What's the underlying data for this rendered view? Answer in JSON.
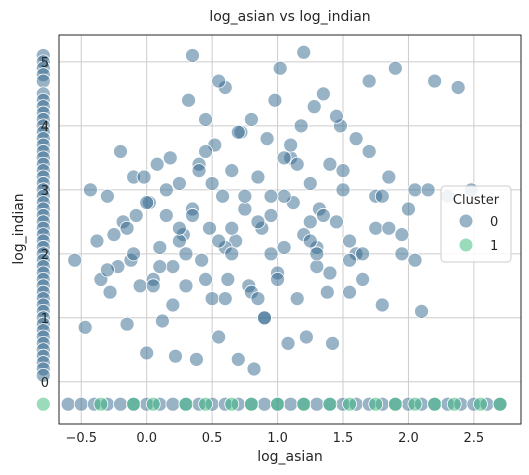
{
  "chart_data": {
    "type": "scatter",
    "title": "log_asian vs log_indian",
    "xlabel": "log_asian",
    "ylabel": "log_indian",
    "xlim": [
      -0.67,
      2.86
    ],
    "ylim": [
      -0.66,
      5.42
    ],
    "xticks": [
      -0.5,
      0.0,
      0.5,
      1.0,
      1.5,
      2.0,
      2.5
    ],
    "xtick_labels": [
      "−0.5",
      "0.0",
      "0.5",
      "1.0",
      "1.5",
      "2.0",
      "2.5"
    ],
    "yticks": [
      0,
      1,
      2,
      3,
      4,
      5
    ],
    "ytick_labels": [
      "0",
      "1",
      "2",
      "3",
      "4",
      "5"
    ],
    "grid": true,
    "legend": {
      "title": "Cluster",
      "placement": "center-right",
      "entries": [
        {
          "label": "0",
          "color": "#31688e"
        },
        {
          "label": "1",
          "color": "#35b779"
        }
      ]
    },
    "series": [
      {
        "name": "0",
        "color": "#31688e",
        "x": [
          -0.79,
          -0.79,
          -0.79,
          -0.79,
          -0.79,
          -0.79,
          -0.79,
          -0.79,
          -0.79,
          -0.79,
          -0.79,
          -0.79,
          -0.79,
          -0.79,
          -0.79,
          -0.79,
          -0.79,
          -0.79,
          -0.79,
          -0.79,
          -0.79,
          -0.79,
          -0.79,
          -0.79,
          -0.79,
          -0.79,
          -0.79,
          -0.79,
          -0.79,
          -0.79,
          -0.79,
          -0.79,
          -0.79,
          -0.79,
          -0.79,
          -0.79,
          -0.79,
          -0.79,
          -0.79,
          -0.79,
          -0.79,
          -0.79,
          -0.79,
          -0.79,
          -0.79,
          -0.79,
          -0.79,
          -0.79,
          -0.79,
          -0.79,
          -0.55,
          -0.47,
          -0.43,
          -0.38,
          -0.35,
          -0.3,
          -0.28,
          -0.25,
          -0.22,
          -0.2,
          -0.18,
          -0.15,
          -0.12,
          -0.1,
          -0.08,
          -0.05,
          -0.02,
          0.0,
          0.02,
          0.05,
          0.08,
          0.1,
          0.12,
          0.15,
          0.18,
          0.2,
          0.22,
          0.25,
          0.28,
          0.3,
          0.32,
          0.35,
          0.38,
          0.4,
          0.42,
          0.45,
          0.48,
          0.5,
          0.52,
          0.55,
          0.58,
          0.6,
          0.62,
          0.65,
          0.68,
          0.7,
          0.72,
          0.75,
          0.78,
          0.8,
          0.82,
          0.85,
          0.88,
          0.9,
          0.92,
          0.95,
          0.98,
          1.0,
          1.02,
          1.05,
          1.08,
          1.1,
          1.12,
          1.15,
          1.18,
          1.2,
          1.22,
          1.25,
          1.28,
          1.3,
          1.32,
          1.35,
          1.38,
          1.4,
          1.42,
          1.45,
          1.48,
          1.5,
          1.55,
          1.6,
          1.65,
          1.7,
          1.75,
          1.8,
          1.85,
          1.9,
          1.95,
          2.0,
          2.05,
          2.1,
          2.2,
          2.3,
          2.38,
          2.48,
          0.35,
          0.55,
          0.7,
          0.95,
          1.2,
          1.45,
          0.1,
          0.25,
          0.45,
          0.6,
          0.85,
          1.05,
          1.3,
          1.55,
          1.75,
          2.15,
          0.0,
          0.2,
          0.4,
          0.65,
          0.9,
          1.1,
          1.35,
          1.6,
          1.85,
          2.05,
          -0.15,
          0.05,
          0.3,
          0.5,
          0.75,
          1.0,
          1.25,
          1.5,
          1.7,
          1.95,
          -0.3,
          -0.1,
          0.15,
          0.35,
          0.6,
          0.8,
          1.05,
          1.3,
          1.55,
          1.8,
          0.45,
          0.65,
          0.85,
          1.15,
          1.4,
          0.25,
          0.55,
          0.95,
          1.25,
          1.65,
          -0.6,
          -0.5,
          -0.4,
          -0.3,
          -0.2,
          -0.1,
          0.0,
          0.1,
          0.2,
          0.3,
          0.4,
          0.5,
          0.6,
          0.7,
          0.8,
          0.9,
          1.0,
          1.1,
          1.2,
          1.3,
          1.4,
          1.5,
          1.6,
          1.7,
          1.8,
          1.9,
          2.0,
          2.1,
          2.2,
          2.3,
          2.4,
          2.5,
          2.6,
          2.7
        ],
        "y": [
          5.1,
          5.0,
          4.9,
          4.8,
          4.7,
          4.5,
          4.4,
          4.3,
          4.2,
          4.1,
          4.0,
          3.9,
          3.8,
          3.7,
          3.6,
          3.5,
          3.4,
          3.3,
          3.2,
          3.1,
          3.0,
          2.9,
          2.8,
          2.7,
          2.6,
          2.5,
          2.4,
          2.3,
          2.2,
          2.1,
          2.0,
          1.9,
          1.8,
          1.7,
          1.6,
          1.5,
          1.4,
          1.3,
          1.2,
          1.1,
          1.0,
          0.9,
          0.8,
          0.7,
          0.6,
          0.5,
          0.4,
          0.3,
          0.2,
          0.1,
          1.9,
          0.85,
          3.0,
          2.2,
          1.6,
          2.9,
          1.4,
          2.3,
          1.8,
          3.6,
          2.5,
          0.9,
          1.9,
          3.2,
          2.6,
          1.5,
          3.2,
          0.45,
          2.8,
          1.6,
          3.4,
          2.1,
          0.95,
          2.6,
          3.5,
          1.8,
          0.4,
          3.1,
          2.3,
          1.5,
          4.4,
          2.7,
          0.35,
          3.4,
          1.9,
          4.1,
          2.4,
          1.3,
          3.7,
          0.7,
          2.9,
          4.6,
          1.6,
          3.3,
          2.2,
          0.35,
          3.9,
          2.7,
          1.5,
          4.1,
          0.2,
          3.2,
          2.4,
          1.0,
          3.8,
          2.6,
          4.4,
          1.7,
          4.9,
          2.1,
          0.6,
          3.5,
          2.8,
          1.3,
          4.0,
          2.3,
          0.7,
          3.1,
          4.3,
          1.8,
          2.7,
          4.5,
          1.4,
          3.4,
          0.6,
          2.5,
          4.0,
          3.0,
          2.2,
          3.8,
          1.6,
          4.7,
          2.4,
          1.2,
          3.2,
          4.9,
          2.0,
          2.7,
          3.0,
          1.1,
          4.7,
          2.9,
          4.6,
          3.0,
          5.1,
          4.7,
          3.9,
          2.0,
          5.15,
          4.15,
          1.8,
          2.2,
          3.6,
          1.3,
          2.5,
          3.5,
          2.1,
          1.4,
          2.9,
          3.0,
          2.8,
          1.2,
          3.3,
          2.4,
          1.0,
          3.7,
          2.6,
          2.0,
          2.4,
          1.9,
          2.4,
          1.5,
          2.0,
          3.1,
          2.9,
          1.6,
          2.2,
          3.3,
          3.6,
          2.3,
          1.75,
          2.0,
          3.0,
          2.6,
          2.1,
          1.4,
          2.9,
          2.0,
          1.9,
          2.9,
          1.6,
          2.0,
          1.3,
          3.4,
          1.7,
          2.4,
          2.2,
          2.9,
          2.5,
          2.0,
          -0.35,
          -0.35,
          -0.35,
          -0.35,
          -0.35,
          -0.35,
          -0.35,
          -0.35,
          -0.35,
          -0.35,
          -0.35,
          -0.35,
          -0.35,
          -0.35,
          -0.35,
          -0.35,
          -0.35,
          -0.35,
          -0.35,
          -0.35,
          -0.35,
          -0.35,
          -0.35,
          -0.35,
          -0.35,
          -0.35,
          -0.35,
          -0.35,
          -0.35,
          -0.35,
          -0.35,
          -0.35,
          -0.35,
          -0.35
        ]
      },
      {
        "name": "1",
        "color": "#35b779",
        "x": [
          -0.79,
          -0.35,
          -0.1,
          0.05,
          0.3,
          0.45,
          0.65,
          0.8,
          1.0,
          1.2,
          1.4,
          1.55,
          1.75,
          1.9,
          2.05,
          2.2,
          2.35,
          2.55,
          2.7
        ],
        "y": [
          -0.35,
          -0.35,
          -0.35,
          -0.35,
          -0.35,
          -0.35,
          -0.35,
          -0.35,
          -0.35,
          -0.35,
          -0.35,
          -0.35,
          -0.35,
          -0.35,
          -0.35,
          -0.35,
          -0.35,
          -0.35,
          -0.35
        ]
      }
    ]
  }
}
